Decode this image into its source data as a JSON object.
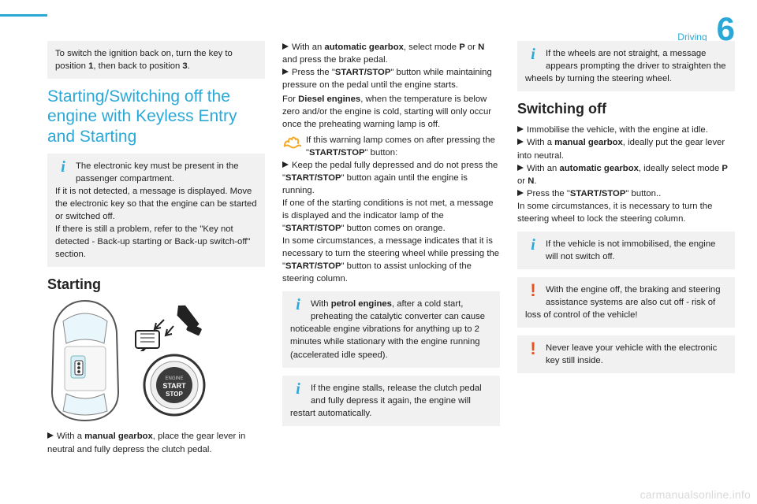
{
  "header": {
    "section": "Driving",
    "chapter": "6"
  },
  "col1": {
    "note_ignition": "To switch the ignition back on, turn the key to position <b>1</b>, then back to position <b>3</b>.",
    "heading": "Starting/Switching off the engine with Keyless Entry and Starting",
    "note_key": "The electronic key must be present in the passenger compartment.<br>If it is not detected, a message is displayed. Move the electronic key so that the engine can be started or switched off.<br>If there is still a problem, refer to the \"Key not detected - Back-up starting or Back-up switch-off\" section.",
    "starting": "Starting",
    "line_manual": "With a <b>manual gearbox</b>, place the gear lever in neutral and fully depress the clutch pedal."
  },
  "col2": {
    "line_auto": "With an <b>automatic gearbox</b>, select mode <b>P</b> or <b>N</b> and press the brake pedal.",
    "line_press": "Press the \"<b>START/STOP</b>\" button while maintaining pressure on the pedal until the engine starts.",
    "diesel": "For <b>Diesel engines</b>, when the temperature is below zero and/or the engine is cold, starting will only occur once the preheating warning lamp is off.",
    "preheat_intro": "If this warning lamp comes on after pressing the \"<b>START/STOP</b>\" button:",
    "keep_pedal": "Keep the pedal fully depressed and do not press the \"<b>START/STOP</b>\" button again until the engine is running.",
    "cond_not_met": "If one of the starting conditions is not met, a message is displayed and the indicator lamp of the \"<b>START/STOP</b>\" button comes on orange.",
    "turn_wheel": "In some circumstances, a message indicates that it is necessary to turn the steering wheel while pressing the \"<b>START/STOP</b>\" button to assist unlocking of the steering column.",
    "note_petrol": "With <b>petrol engines</b>, after a cold start, preheating the catalytic converter can cause noticeable engine vibrations for anything up to 2 minutes while stationary with the engine running (accelerated idle speed).",
    "note_stall": "If the engine stalls, release the clutch pedal and fully depress it again, the engine will restart automatically."
  },
  "col3": {
    "note_wheels": "If the wheels are not straight, a message appears prompting the driver to straighten the wheels by turning the steering wheel.",
    "switching_off": "Switching off",
    "immobilise": "Immobilise the vehicle, with the engine at idle.",
    "manual_neutral": "With a <b>manual gearbox</b>, ideally put the gear lever into neutral.",
    "auto_pn": "With an <b>automatic gearbox</b>, ideally select mode <b>P</b> or <b>N</b>.",
    "press_off": "Press the \"<b>START/STOP</b>\" button..",
    "turn_lock": "In some circumstances, it is necessary to turn the steering wheel to lock the steering column.",
    "note_not_immob": "If the vehicle is not immobilised, the engine will not switch off.",
    "warn_brake": "With the engine off, the braking and steering assistance systems are also cut off - risk of loss of control of the vehicle!",
    "warn_key": "Never leave your vehicle with the electronic key still inside."
  },
  "watermark": "carmanualsonline.info",
  "colors": {
    "accent": "#2aa8d8",
    "warn": "#e94e1b",
    "note_bg": "#f1f1f1"
  }
}
